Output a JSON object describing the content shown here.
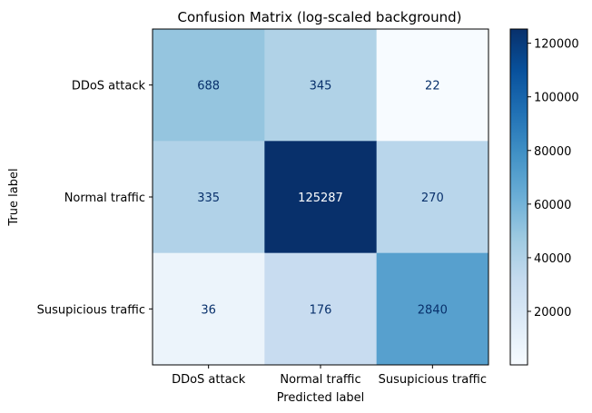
{
  "chart_data": {
    "type": "heatmap",
    "title": "Confusion Matrix (log-scaled background)",
    "xlabel": "Predicted label",
    "ylabel": "True label",
    "x_categories": [
      "DDoS attack",
      "Normal traffic",
      "Susupicious traffic"
    ],
    "y_categories": [
      "DDoS attack",
      "Normal traffic",
      "Susupicious traffic"
    ],
    "values": [
      [
        688,
        345,
        22
      ],
      [
        335,
        125287,
        270
      ],
      [
        36,
        176,
        2840
      ]
    ],
    "cell_labels": [
      [
        "688",
        "345",
        "22"
      ],
      [
        "335",
        "125287",
        "270"
      ],
      [
        "36",
        "176",
        "2840"
      ]
    ],
    "color_scale": "log",
    "colormap": "Blues",
    "colorbar": {
      "range": [
        22,
        125287
      ],
      "ticks": [
        20000,
        40000,
        60000,
        80000,
        100000,
        120000
      ],
      "tick_labels": [
        "20000",
        "40000",
        "60000",
        "80000",
        "100000",
        "120000"
      ]
    },
    "grid": false
  }
}
